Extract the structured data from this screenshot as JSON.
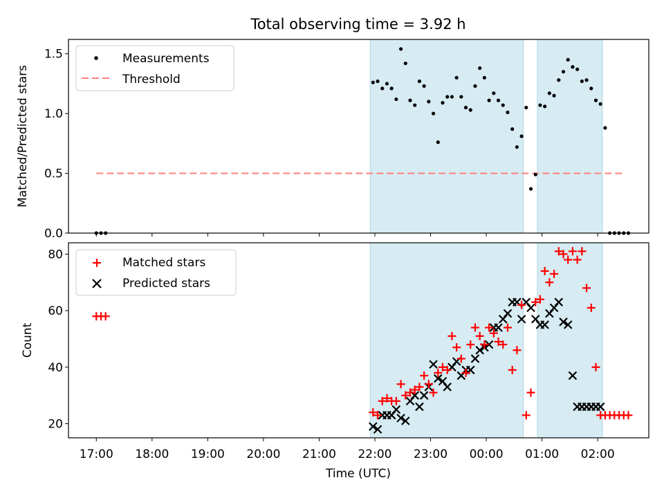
{
  "chart_data": [
    {
      "type": "scatter",
      "title": "Total observing time = 3.92 h",
      "ylabel": "Matched/Predicted stars",
      "xlim": [
        "16:30",
        "02:55"
      ],
      "ylim": [
        0,
        1.62
      ],
      "yticks": [
        0.0,
        0.5,
        1.0,
        1.5
      ],
      "ytick_labels": [
        "0.0",
        "0.5",
        "1.0",
        "1.5"
      ],
      "shaded_spans": [
        [
          "21:55",
          "00:40"
        ],
        [
          "00:55",
          "02:05"
        ]
      ],
      "threshold": {
        "value": 0.5,
        "x_start": "17:00",
        "x_end": "02:30"
      },
      "legend": {
        "placement": "upper left",
        "entries": [
          "Measurements",
          "Threshold"
        ]
      },
      "series": [
        {
          "name": "Measurements",
          "x": [
            "17:00",
            "17:05",
            "17:10",
            "21:58",
            "22:03",
            "22:08",
            "22:13",
            "22:18",
            "22:23",
            "22:28",
            "22:33",
            "22:38",
            "22:43",
            "22:48",
            "22:53",
            "22:58",
            "23:03",
            "23:08",
            "23:13",
            "23:18",
            "23:23",
            "23:28",
            "23:33",
            "23:38",
            "23:43",
            "23:48",
            "23:53",
            "23:58",
            "24:03",
            "24:08",
            "24:13",
            "24:18",
            "24:23",
            "24:28",
            "24:33",
            "24:38",
            "24:43",
            "24:48",
            "24:53",
            "24:58",
            "25:03",
            "25:08",
            "25:13",
            "25:18",
            "25:23",
            "25:28",
            "25:33",
            "25:38",
            "25:43",
            "25:48",
            "25:53",
            "25:58",
            "26:03",
            "26:08",
            "26:13",
            "26:18",
            "26:23",
            "26:28",
            "26:33"
          ],
          "values": [
            0,
            0,
            0,
            1.26,
            1.27,
            1.21,
            1.25,
            1.21,
            1.12,
            1.54,
            1.42,
            1.11,
            1.07,
            1.27,
            1.23,
            1.1,
            1.0,
            0.76,
            1.09,
            1.14,
            1.14,
            1.3,
            1.14,
            1.05,
            1.03,
            1.23,
            1.38,
            1.3,
            1.11,
            1.17,
            1.11,
            1.07,
            1.01,
            0.87,
            0.72,
            0.81,
            1.05,
            0.37,
            0.49,
            1.07,
            1.06,
            1.17,
            1.15,
            1.28,
            1.35,
            1.45,
            1.39,
            1.37,
            1.27,
            1.28,
            1.21,
            1.11,
            1.08,
            0.88,
            0,
            0,
            0,
            0,
            0
          ]
        },
        {
          "name": "Threshold",
          "x": [
            "17:00",
            "02:30"
          ],
          "values": [
            0.5,
            0.5
          ]
        }
      ]
    },
    {
      "type": "scatter",
      "xlabel": "Time (UTC)",
      "ylabel": "Count",
      "xlim": [
        "16:30",
        "02:55"
      ],
      "ylim": [
        15,
        84
      ],
      "yticks": [
        20,
        40,
        60,
        80
      ],
      "ytick_labels": [
        "20",
        "40",
        "60",
        "80"
      ],
      "xticks": [
        "17:00",
        "18:00",
        "19:00",
        "20:00",
        "21:00",
        "22:00",
        "23:00",
        "00:00",
        "01:00",
        "02:00"
      ],
      "shaded_spans": [
        [
          "21:55",
          "00:40"
        ],
        [
          "00:55",
          "02:05"
        ]
      ],
      "legend": {
        "placement": "upper left",
        "entries": [
          "Matched stars",
          "Predicted stars"
        ]
      },
      "series": [
        {
          "name": "Matched stars",
          "color": "#ff0000",
          "x": [
            "17:00",
            "17:05",
            "17:10",
            "21:58",
            "22:03",
            "22:08",
            "22:13",
            "22:18",
            "22:23",
            "22:28",
            "22:33",
            "22:38",
            "22:43",
            "22:48",
            "22:53",
            "22:58",
            "23:03",
            "23:08",
            "23:13",
            "23:18",
            "23:23",
            "23:28",
            "23:33",
            "23:38",
            "23:43",
            "23:48",
            "23:53",
            "23:58",
            "24:03",
            "24:08",
            "24:13",
            "24:18",
            "24:23",
            "24:28",
            "24:33",
            "24:38",
            "24:43",
            "24:48",
            "24:53",
            "24:58",
            "25:03",
            "25:08",
            "25:13",
            "25:18",
            "25:23",
            "25:28",
            "25:33",
            "25:38",
            "25:43",
            "25:48",
            "25:53",
            "25:58",
            "26:03",
            "26:08",
            "26:13",
            "26:18",
            "26:23",
            "26:28",
            "26:33"
          ],
          "values": [
            58,
            58,
            58,
            24,
            23,
            28,
            29,
            28,
            28,
            34,
            30,
            31,
            32,
            33,
            37,
            34,
            31,
            38,
            40,
            39,
            51,
            47,
            43,
            38,
            48,
            54,
            51,
            48,
            54,
            52,
            49,
            48,
            54,
            39,
            46,
            62,
            23,
            31,
            63,
            64,
            74,
            70,
            73,
            81,
            80,
            78,
            81,
            78,
            81,
            68,
            61,
            40,
            23,
            23,
            23,
            23,
            23,
            23,
            23
          ]
        },
        {
          "name": "Predicted stars",
          "color": "#000000",
          "x": [
            "21:58",
            "22:03",
            "22:08",
            "22:13",
            "22:18",
            "22:23",
            "22:28",
            "22:33",
            "22:38",
            "22:43",
            "22:48",
            "22:53",
            "22:58",
            "23:03",
            "23:08",
            "23:13",
            "23:18",
            "23:23",
            "23:28",
            "23:33",
            "23:38",
            "23:43",
            "23:48",
            "23:53",
            "23:58",
            "24:03",
            "24:08",
            "24:13",
            "24:18",
            "24:23",
            "24:28",
            "24:33",
            "24:38",
            "24:43",
            "24:48",
            "24:53",
            "24:58",
            "25:03",
            "25:08",
            "25:13",
            "25:18",
            "25:23",
            "25:28",
            "25:33",
            "25:38",
            "25:43",
            "25:48",
            "25:53",
            "25:58",
            "26:03"
          ],
          "values": [
            19,
            18,
            23,
            23,
            23,
            25,
            22,
            21,
            28,
            30,
            26,
            30,
            33,
            41,
            36,
            35,
            33,
            40,
            42,
            37,
            39,
            39,
            43,
            46,
            47,
            48,
            54,
            54,
            57,
            59,
            63,
            63,
            57,
            63,
            61,
            57,
            55,
            55,
            59,
            61,
            63,
            56,
            55,
            37,
            26,
            26,
            26,
            26,
            26,
            26
          ]
        }
      ]
    }
  ]
}
